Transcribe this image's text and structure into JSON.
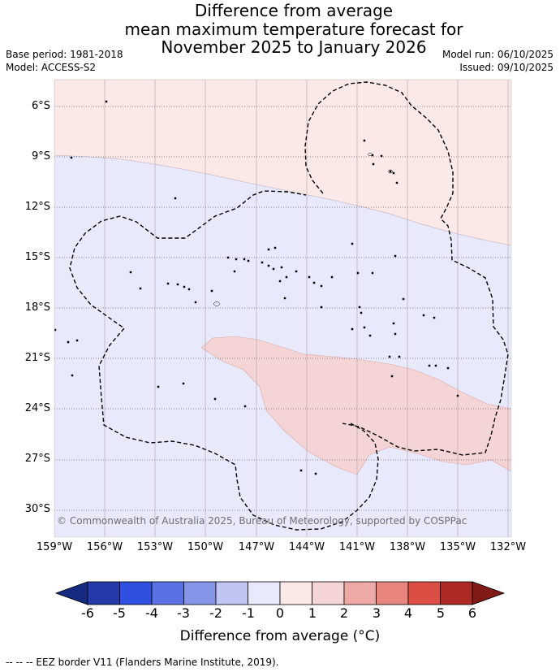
{
  "title": {
    "line1": "Difference from average",
    "line2": "mean maximum temperature forecast for",
    "line3": "November 2025 to January 2026"
  },
  "meta": {
    "base_period": "Base period: 1981-2018",
    "model": "Model: ACCESS-S2",
    "model_run": "Model run: 06/10/2025",
    "issued": "Issued: 09/10/2025"
  },
  "map": {
    "credit": "© Commonwealth of Australia 2025, Bureau of Meteorology, supported by COSPPac",
    "lat_labels": [
      "6°S",
      "9°S",
      "12°S",
      "15°S",
      "18°S",
      "21°S",
      "24°S",
      "27°S",
      "30°S"
    ],
    "lon_labels": [
      "159°W",
      "156°W",
      "153°W",
      "150°W",
      "147°W",
      "144°W",
      "141°W",
      "138°W",
      "135°W",
      "132°W"
    ],
    "regions": [
      {
        "name": "below-average-0-to-minus-1",
        "color": "#e8eafc"
      },
      {
        "name": "above-average-0-to-1",
        "color": "#fbe9e7"
      },
      {
        "name": "above-average-1-to-2",
        "color": "#f4d4d4"
      }
    ]
  },
  "colorbar": {
    "ticks": [
      "-6",
      "-5",
      "-4",
      "-3",
      "-2",
      "-1",
      "0",
      "1",
      "2",
      "3",
      "4",
      "5",
      "6"
    ],
    "colors": [
      "#243aa9",
      "#3050e0",
      "#5a71e3",
      "#8795e8",
      "#bfc5f3",
      "#e8eafc",
      "#fbe9e7",
      "#f4d4d4",
      "#eea9a7",
      "#e8857d",
      "#dc4d43",
      "#ad2a22"
    ],
    "under_color": "#162a80",
    "over_color": "#7f1a16",
    "label": "Difference from average (°C)"
  },
  "footer": "--  --  -- EEZ border V11 (Flanders Marine Institute, 2019)."
}
